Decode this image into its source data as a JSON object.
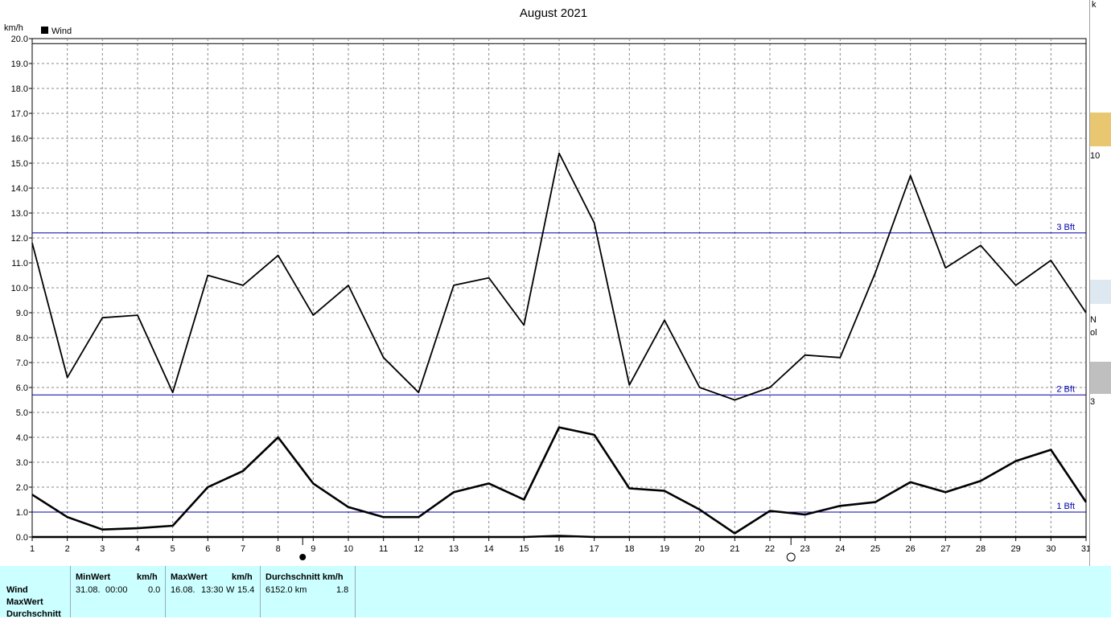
{
  "chart_data": {
    "type": "line",
    "title": "August 2021",
    "ylabel": "km/h",
    "xlabel": "",
    "legend": {
      "label": "Wind",
      "placement": "top-left"
    },
    "x": [
      1,
      2,
      3,
      4,
      5,
      6,
      7,
      8,
      9,
      10,
      11,
      12,
      13,
      14,
      15,
      16,
      17,
      18,
      19,
      20,
      21,
      22,
      23,
      24,
      25,
      26,
      27,
      28,
      29,
      30,
      31
    ],
    "ylim": [
      0,
      20
    ],
    "yticks": [
      "0.0",
      "1.0",
      "2.0",
      "3.0",
      "4.0",
      "5.0",
      "6.0",
      "7.0",
      "8.0",
      "9.0",
      "10.0",
      "11.0",
      "12.0",
      "13.0",
      "14.0",
      "15.0",
      "16.0",
      "17.0",
      "18.0",
      "19.0",
      "20.0"
    ],
    "grid": true,
    "series": [
      {
        "name": "MaxWert",
        "color": "#000000",
        "values": [
          11.8,
          6.4,
          8.8,
          8.9,
          5.8,
          10.5,
          10.1,
          11.3,
          8.9,
          10.1,
          7.2,
          5.8,
          10.1,
          10.4,
          8.5,
          15.4,
          12.6,
          6.1,
          8.7,
          6.0,
          5.5,
          6.0,
          7.3,
          7.2,
          10.6,
          14.5,
          10.8,
          11.7,
          10.1,
          11.1,
          9.0
        ]
      },
      {
        "name": "Durchschnitt",
        "color": "#000000",
        "values": [
          1.7,
          0.8,
          0.3,
          0.35,
          0.45,
          2.0,
          2.65,
          4.0,
          2.15,
          1.2,
          0.8,
          0.8,
          1.8,
          2.15,
          1.5,
          4.4,
          4.1,
          1.95,
          1.85,
          1.1,
          0.15,
          1.05,
          0.9,
          1.25,
          1.4,
          2.2,
          1.8,
          2.25,
          3.05,
          3.5,
          1.4
        ]
      },
      {
        "name": "MinWert",
        "color": "#000000",
        "values": [
          0,
          0,
          0,
          0,
          0,
          0,
          0,
          0,
          0,
          0,
          0,
          0,
          0,
          0,
          0,
          0.05,
          0,
          0,
          0,
          0,
          0,
          0,
          0,
          0,
          0,
          0,
          0,
          0,
          0,
          0,
          0
        ]
      }
    ],
    "reference_lines": [
      {
        "label": "1 Bft",
        "value": 1.0,
        "color": "#0000aa"
      },
      {
        "label": "2 Bft",
        "value": 5.7,
        "color": "#0000aa"
      },
      {
        "label": "3 Bft",
        "value": 12.2,
        "color": "#0000aa"
      }
    ],
    "top_line_value": 19.8,
    "moon_phases": [
      {
        "day": 8.7,
        "phase": "new-moon"
      },
      {
        "day": 22.6,
        "phase": "full-moon"
      }
    ]
  },
  "stats": {
    "row_labels": [
      "Wind",
      "MaxWert",
      "Durchschnitt"
    ],
    "min": {
      "header": "MinWert",
      "unit": "km/h",
      "date": "31.08.",
      "time": "00:00",
      "value": "0.0"
    },
    "max": {
      "header": "MaxWert",
      "unit": "km/h",
      "date": "16.08.",
      "time": "13:30",
      "dir": "W",
      "value": "15.4"
    },
    "avg": {
      "header": "Durchschnitt km/h",
      "distance": "6152.0 km",
      "value": "1.8"
    }
  },
  "edge_fragments": [
    "k",
    "10",
    "N",
    "ol",
    "3"
  ]
}
